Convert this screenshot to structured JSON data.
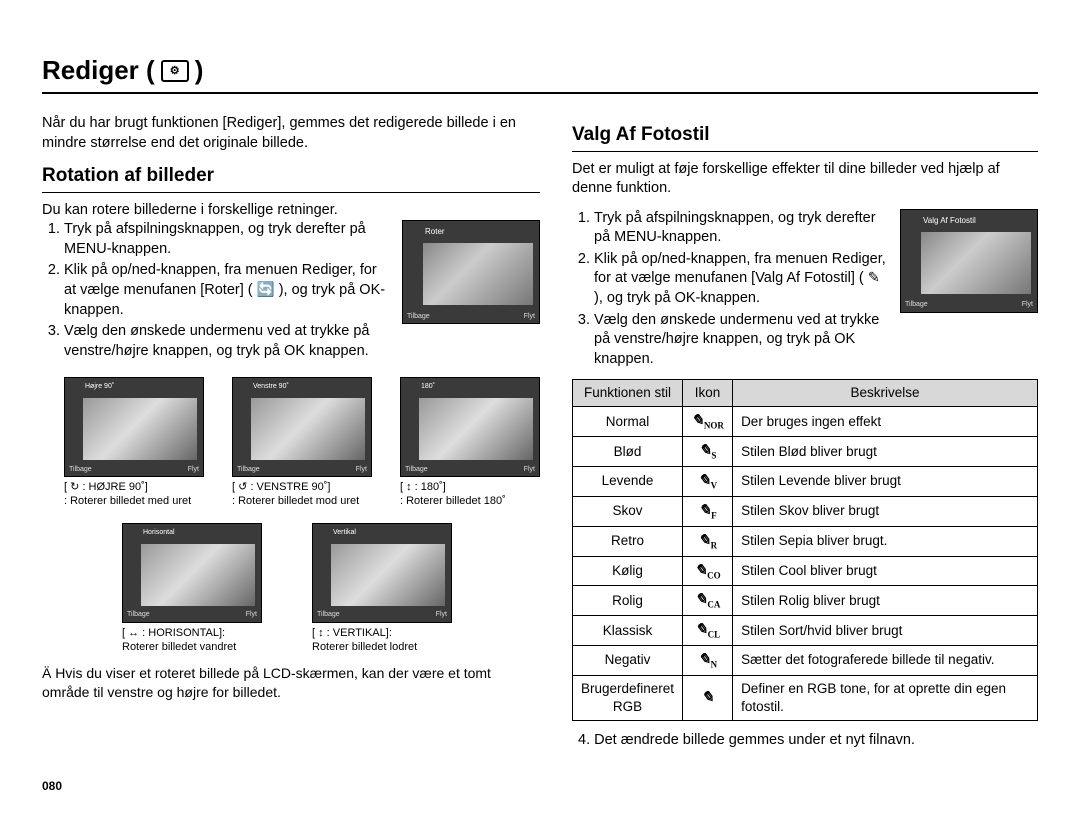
{
  "page_number": "080",
  "title": "Rediger (",
  "title_close": ")",
  "left": {
    "intro": "Når du har brugt funktionen [Rediger], gemmes det redigerede billede i en mindre størrelse end det originale billede.",
    "section": "Rotation af billeder",
    "sub_intro": "Du kan rotere billederne i forskellige retninger.",
    "steps": [
      "Tryk på afspilningsknappen, og tryk derefter på MENU-knappen.",
      "Klik på op/ned-knappen, fra menuen Rediger, for at vælge menufanen [Roter] ( 🔄 ), og tryk på OK-knappen.",
      "Vælg den ønskede undermenu ved at trykke på venstre/højre knappen, og tryk på OK knappen."
    ],
    "main_thumb": {
      "label": "Roter",
      "back": "Tilbage",
      "move": "Flyt"
    },
    "thumbs_row1": [
      {
        "tl": "Højre 90˚",
        "caption1": "[ ↻ : HØJRE 90˚]",
        "caption2": ": Roterer billedet med uret"
      },
      {
        "tl": "Venstre 90˚",
        "caption1": "[ ↺ : VENSTRE 90˚]",
        "caption2": ": Roterer billedet mod uret"
      },
      {
        "tl": "180˚",
        "caption1": "[ ↕ : 180˚]",
        "caption2": ": Roterer billedet 180˚"
      }
    ],
    "thumbs_row2": [
      {
        "tl": "Horisontal",
        "caption1": "[ ↔ : HORISONTAL]:",
        "caption2": "Roterer billedet vandret"
      },
      {
        "tl": "Vertikal",
        "caption1": "[ ↕ : VERTIKAL]:",
        "caption2": "Roterer billedet lodret"
      }
    ],
    "note": "Ä Hvis du viser et roteret billede på LCD-skærmen, kan der være et tomt område til venstre og højre for billedet."
  },
  "right": {
    "section": "Valg Af Fotostil",
    "intro": "Det er muligt at føje forskellige effekter til dine billeder ved hjælp af denne funktion.",
    "steps": [
      "Tryk på afspilningsknappen, og tryk derefter på MENU-knappen.",
      "Klik på op/ned-knappen, fra menuen Rediger, for at vælge menufanen [Valg Af Fotostil] ( ✎ ), og tryk på OK-knappen.",
      "Vælg den ønskede undermenu ved at trykke på venstre/højre knappen, og tryk på OK knappen."
    ],
    "main_thumb": {
      "label": "Valg Af Fotostil",
      "back": "Tilbage",
      "move": "Flyt"
    },
    "table": {
      "headers": [
        "Funktionen stil",
        "Ikon",
        "Beskrivelse"
      ],
      "rows": [
        {
          "fn": "Normal",
          "sub": "NOR",
          "desc": "Der bruges ingen effekt"
        },
        {
          "fn": "Blød",
          "sub": "S",
          "desc": "Stilen Blød bliver brugt"
        },
        {
          "fn": "Levende",
          "sub": "V",
          "desc": "Stilen Levende bliver brugt"
        },
        {
          "fn": "Skov",
          "sub": "F",
          "desc": "Stilen Skov bliver brugt"
        },
        {
          "fn": "Retro",
          "sub": "R",
          "desc": "Stilen Sepia bliver brugt."
        },
        {
          "fn": "Kølig",
          "sub": "CO",
          "desc": "Stilen Cool bliver brugt"
        },
        {
          "fn": "Rolig",
          "sub": "CA",
          "desc": "Stilen Rolig bliver brugt"
        },
        {
          "fn": "Klassisk",
          "sub": "CL",
          "desc": "Stilen Sort/hvid bliver brugt"
        },
        {
          "fn": "Negativ",
          "sub": "N",
          "desc": "Sætter det fotograferede billede til negativ."
        },
        {
          "fn": "Brugerdefineret RGB",
          "sub": "",
          "desc": "Definer en RGB tone, for at oprette din egen fotostil."
        }
      ]
    },
    "footnote": "4. Det ændrede billede gemmes under et nyt filnavn."
  }
}
